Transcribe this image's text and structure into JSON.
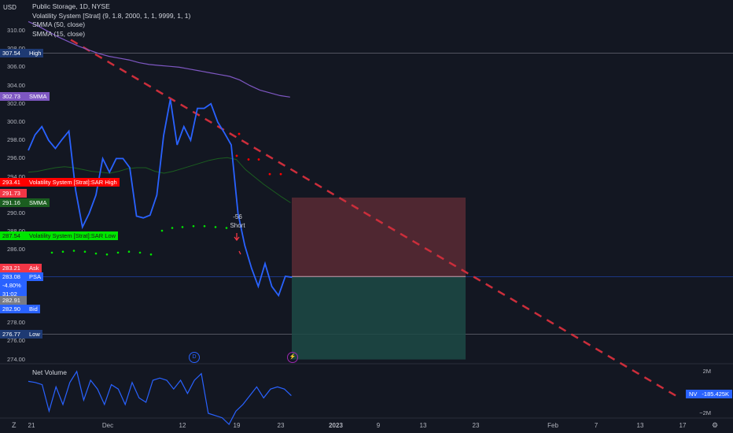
{
  "legend": {
    "title": "Public Storage, 1D, NYSE",
    "strategy": "Volatility System [Strat] (9, 1.8, 2000, 1, 1, 9999, 1, 1)",
    "smma50": "SMMA (50, close)",
    "smma15": "SMMA (15, close)"
  },
  "currency": "USD",
  "y_ticks": [
    "310.00",
    "308.00",
    "306.00",
    "304.00",
    "302.00",
    "300.00",
    "298.00",
    "296.00",
    "294.00",
    "292.00",
    "290.00",
    "288.00",
    "286.00",
    "284.00",
    "282.00",
    "280.00",
    "278.00",
    "276.00",
    "274.00"
  ],
  "x_ticks": [
    "21",
    "Dec",
    "12",
    "19",
    "23",
    "2023",
    "9",
    "13",
    "23",
    "Feb",
    "7",
    "13",
    "17"
  ],
  "price_labels": [
    {
      "value": "307.54",
      "name": "High",
      "bg": "#1e3a73",
      "color": "#ffffff"
    },
    {
      "value": "302.73",
      "name": "SMMA",
      "bg": "#7e57c2",
      "color": "#ffffff"
    },
    {
      "value": "293.41",
      "name": "Volatility System [Strat]:SAR High",
      "bg": "#ff0000",
      "color": "#ffffff"
    },
    {
      "value": "291.73",
      "name": "",
      "bg": "#f23645",
      "color": "#ffffff"
    },
    {
      "value": "291.16",
      "name": "SMMA",
      "bg": "#1b5e20",
      "color": "#ffffff"
    },
    {
      "value": "287.54",
      "name": "Volatility System [Strat]:SAR Low",
      "bg": "#00e600",
      "color": "#1b1b1b"
    },
    {
      "value": "283.21",
      "name": "Ask",
      "bg": "#f23645",
      "color": "#ffffff"
    },
    {
      "value": "283.08",
      "name": "PSA",
      "bg": "#2962ff",
      "color": "#ffffff"
    },
    {
      "value": "-4.80%",
      "name": "",
      "bg": "#2962ff",
      "color": "#ffffff"
    },
    {
      "value": "31:02",
      "name": "",
      "bg": "#2962ff",
      "color": "#ffffff"
    },
    {
      "value": "282.91",
      "name": "",
      "bg": "#787b86",
      "color": "#ffffff"
    },
    {
      "value": "282.90",
      "name": "Bid",
      "bg": "#2962ff",
      "color": "#ffffff"
    },
    {
      "value": "276.77",
      "name": "Low",
      "bg": "#1e3a73",
      "color": "#ffffff"
    }
  ],
  "trade": {
    "direction": "Short",
    "size": "-56",
    "entry": 283.08,
    "target_stop_top": 291.73,
    "target_bottom": 274.0
  },
  "events": {
    "dividend": "D",
    "split": "⚡"
  },
  "volume": {
    "title": "Net Volume",
    "label": "NV",
    "value": "-185.425K",
    "scale_top": "2M",
    "scale_bottom": "−2M"
  },
  "chart_data": {
    "type": "line",
    "ylim": [
      274,
      311
    ],
    "series": [
      {
        "name": "PSA",
        "color": "#2962ff",
        "values": [
          296.9,
          298.6,
          299.5,
          298.0,
          297.1,
          298.1,
          299.0,
          292.5,
          288.5,
          290.0,
          292.0,
          296.0,
          294.5,
          296.0,
          296.0,
          295.0,
          289.7,
          289.5,
          289.8,
          292.0,
          298.5,
          302.5,
          297.5,
          299.5,
          298.0,
          301.5,
          301.5,
          302.0,
          300.0,
          298.8,
          297.5,
          290.0,
          286.5,
          284.0,
          282.0,
          284.5,
          282.0,
          281.0,
          283.1,
          283.0
        ]
      },
      {
        "name": "SMMA (50, close)",
        "color": "#7e57c2",
        "values": [
          311,
          310.5,
          309.9,
          309.3,
          308.8,
          308.3,
          307.9,
          307.5,
          307.2,
          307.0,
          306.8,
          306.5,
          306.3,
          306.2,
          306.1,
          306.0,
          305.8,
          305.6,
          305.4,
          305.2,
          305.0,
          304.6,
          304.0,
          303.5,
          303.2,
          302.9,
          302.73
        ]
      },
      {
        "name": "SMMA (15, close)",
        "color": "#1b5e20",
        "values": [
          294.5,
          294.6,
          294.8,
          295.0,
          295.1,
          295.0,
          294.8,
          294.6,
          294.5,
          294.4,
          294.6,
          294.9,
          295.0,
          295.0,
          294.6,
          294.4,
          294.6,
          294.9,
          295.2,
          295.5,
          295.8,
          296.0,
          296.1,
          295.9,
          294.8,
          294.0,
          293.2,
          292.5,
          291.8,
          291.16
        ]
      },
      {
        "name": "SAR High",
        "color": "#ff0000",
        "values": [
          296.3,
          295.9,
          294.3,
          294.1
        ]
      },
      {
        "name": "SAR Low",
        "color": "#00e600",
        "values": [
          288.1,
          288.4,
          288.5,
          288.6,
          288.6,
          288.5,
          288.4
        ]
      },
      {
        "name": "SAR Low (early)",
        "color": "#00e600",
        "values": [
          285.7,
          285.8,
          285.9,
          285.8,
          285.6,
          285.5,
          285.7,
          285.8,
          285.7,
          285.5
        ]
      },
      {
        "name": "Net Volume",
        "color": "#2962ff",
        "values": [
          0.45,
          0.4,
          0.3,
          -0.9,
          0.2,
          -0.6,
          0.4,
          0.9,
          -0.4,
          0.5,
          0.1,
          -0.6,
          0.3,
          0.1,
          -0.6,
          0.4,
          -0.3,
          -0.5,
          0.5,
          0.6,
          0.5,
          0.1,
          0.5,
          -0.1,
          0.5,
          0.8,
          -1.0,
          -1.1,
          -1.2,
          -1.5,
          -0.9,
          -0.6,
          -0.2,
          0.2,
          -0.3,
          0.1,
          0.2,
          0.1,
          -0.2
        ]
      }
    ],
    "trend_line": {
      "from": 309.0,
      "to": 270.0,
      "color": "#cc2e3b",
      "dashed": true
    }
  },
  "colors": {
    "bg": "#131722",
    "grid": "#2a2e39",
    "text": "#b2b5be",
    "loss_zone": "#5a2a34",
    "profit_zone": "#1d4a45"
  }
}
